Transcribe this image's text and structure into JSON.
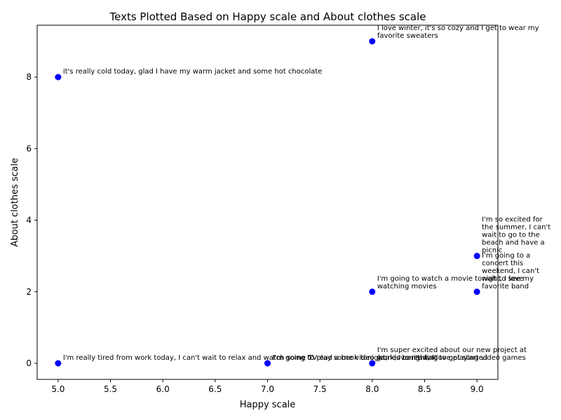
{
  "chart_data": {
    "type": "scatter",
    "title": "Texts Plotted Based on Happy scale and About clothes scale",
    "xlabel": "Happy scale",
    "ylabel": "About clothes scale",
    "xlim": [
      4.8,
      9.2
    ],
    "ylim": [
      -0.45,
      9.45
    ],
    "xticks": [
      5.0,
      5.5,
      6.0,
      6.5,
      7.0,
      7.5,
      8.0,
      8.5,
      9.0
    ],
    "xtick_labels": [
      "5.0",
      "5.5",
      "6.0",
      "6.5",
      "7.0",
      "7.5",
      "8.0",
      "8.5",
      "9.0"
    ],
    "yticks": [
      0,
      2,
      4,
      6,
      8
    ],
    "ytick_labels": [
      "0",
      "2",
      "4",
      "6",
      "8"
    ],
    "grid": false,
    "marker_color": "#0000ff",
    "points": [
      {
        "x": 8,
        "y": 9,
        "label": [
          "I love winter, it's so cozy and I get to wear my",
          "favorite sweaters"
        ]
      },
      {
        "x": 5,
        "y": 8,
        "label": [
          "it's really cold today, glad I have my warm jacket and some hot chocolate"
        ]
      },
      {
        "x": 9,
        "y": 3,
        "label": [
          "I'm so excited for",
          "the summer, I can't",
          "wait to go to the",
          "beach and have a",
          "picnic"
        ]
      },
      {
        "x": 9,
        "y": 2,
        "label": [
          "I'm going to a",
          "concert this",
          "weekend, I can't",
          "wait to see my",
          "favorite band"
        ]
      },
      {
        "x": 8,
        "y": 2,
        "label": [
          "I'm going to watch a movie tonight, I love",
          "watching movies"
        ]
      },
      {
        "x": 8,
        "y": 0,
        "label": [
          "I'm super excited about our new project at",
          "work, I can't wait to get started"
        ]
      },
      {
        "x": 5,
        "y": 0,
        "label": [
          "I'm really tired from work today, I can't wait to relax and watch some TV"
        ]
      },
      {
        "x": 7,
        "y": 0,
        "label": [
          "I'm going to read a book tonight, I love reading"
        ]
      },
      {
        "x": 7,
        "y": 0,
        "label": [
          "I'm going to play some video games tonight, I love playing video games"
        ]
      }
    ]
  }
}
